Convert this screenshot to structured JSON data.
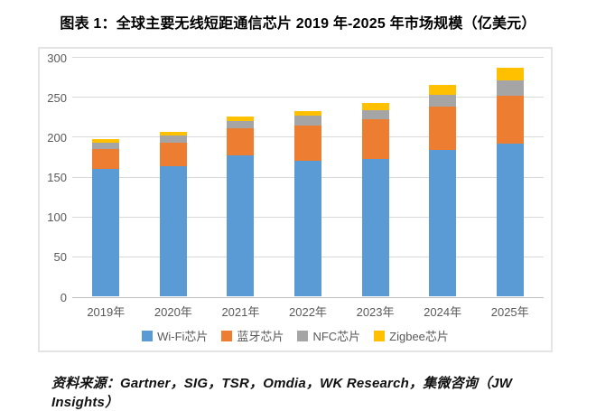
{
  "title": "图表 1：全球主要无线短距通信芯片 2019 年-2025 年市场规模（亿美元）",
  "source": "资料来源：Gartner，SIG，TSR，Omdia，WK Research，集微咨询（JW Insights）",
  "chart_data": {
    "type": "bar",
    "stacked": true,
    "title": "图表 1：全球主要无线短距通信芯片 2019 年-2025 年市场规模（亿美元）",
    "unit": "亿美元",
    "categories": [
      "2019年",
      "2020年",
      "2021年",
      "2022年",
      "2023年",
      "2024年",
      "2025年"
    ],
    "series": [
      {
        "name": "Wi-Fi芯片",
        "color": "#5B9BD5",
        "values": [
          160,
          163,
          177,
          170,
          172,
          183,
          191
        ]
      },
      {
        "name": "蓝牙芯片",
        "color": "#ED7D31",
        "values": [
          25,
          30,
          34,
          44,
          50,
          55,
          60
        ]
      },
      {
        "name": "NFC芯片",
        "color": "#A5A5A5",
        "values": [
          7,
          8,
          9,
          12,
          11,
          15,
          20
        ]
      },
      {
        "name": "Zigbee芯片",
        "color": "#FFC000",
        "values": [
          5,
          5,
          5,
          6,
          9,
          12,
          16
        ]
      }
    ],
    "totals": [
      197,
      206,
      225,
      232,
      242,
      265,
      287
    ],
    "ylim": [
      0,
      300
    ],
    "yticks": [
      0,
      50,
      100,
      150,
      200,
      250,
      300
    ],
    "grid": true,
    "legend_position": "bottom",
    "colors": {
      "grid": "#D9D9D9",
      "axis_text": "#595959",
      "border": "#E4E4E4",
      "title_text": "#000000"
    }
  }
}
